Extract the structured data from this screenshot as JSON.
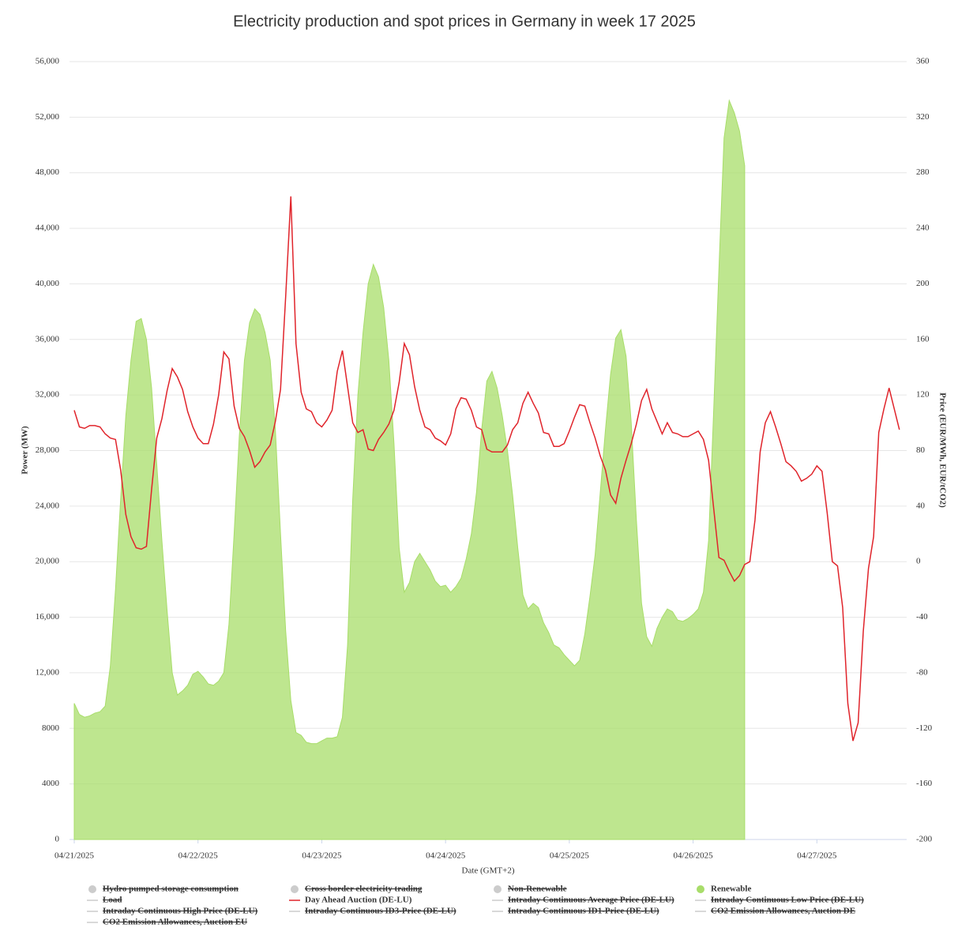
{
  "chart_data": {
    "type": "area_line",
    "title": "Electricity production and spot prices in Germany in week 17 2025",
    "x_label": "Date (GMT+2)",
    "y_label": "Power (MW)",
    "y2_label": "Price (EUR/MWh, EUR/tCO2)",
    "grid": true,
    "categories": [
      "04/21/2025",
      null,
      null,
      null,
      null,
      null,
      null,
      null,
      null,
      null,
      null,
      null,
      null,
      null,
      null,
      null,
      null,
      null,
      null,
      null,
      null,
      null,
      null,
      null,
      "04/22/2025",
      null,
      null,
      null,
      null,
      null,
      null,
      null,
      null,
      null,
      null,
      null,
      null,
      null,
      null,
      null,
      null,
      null,
      null,
      null,
      null,
      null,
      null,
      null,
      "04/23/2025",
      null,
      null,
      null,
      null,
      null,
      null,
      null,
      null,
      null,
      null,
      null,
      null,
      null,
      null,
      null,
      null,
      null,
      null,
      null,
      null,
      null,
      null,
      null,
      "04/24/2025",
      null,
      null,
      null,
      null,
      null,
      null,
      null,
      null,
      null,
      null,
      null,
      null,
      null,
      null,
      null,
      null,
      null,
      null,
      null,
      null,
      null,
      null,
      null,
      "04/25/2025",
      null,
      null,
      null,
      null,
      null,
      null,
      null,
      null,
      null,
      null,
      null,
      null,
      null,
      null,
      null,
      null,
      null,
      null,
      null,
      null,
      null,
      null,
      null,
      "04/26/2025",
      null,
      null,
      null,
      null,
      null,
      null,
      null,
      null,
      null,
      null,
      null,
      null,
      null,
      null,
      null,
      null,
      null,
      null,
      null,
      null,
      null,
      null,
      null,
      "04/27/2025",
      null,
      null,
      null,
      null,
      null,
      null,
      null,
      null,
      null,
      null,
      null,
      null,
      null,
      null,
      null,
      null
    ],
    "ylim": [
      0,
      56000
    ],
    "yticks": [
      0,
      4000,
      8000,
      {
        "value": 12000,
        "label": "12,000"
      },
      {
        "value": 16000,
        "label": "16,000"
      },
      {
        "value": 20000,
        "label": "20,000"
      },
      {
        "value": 24000,
        "label": "24,000"
      },
      {
        "value": 28000,
        "label": "28,000"
      },
      {
        "value": 32000,
        "label": "32,000"
      },
      {
        "value": 36000,
        "label": "36,000"
      },
      {
        "value": 40000,
        "label": "40,000"
      },
      {
        "value": 44000,
        "label": "44,000"
      },
      {
        "value": 48000,
        "label": "48,000"
      },
      {
        "value": 52000,
        "label": "52,000"
      },
      {
        "value": 56000,
        "label": "56,000"
      }
    ],
    "y2lim": [
      -200,
      360
    ],
    "y2ticks": [
      -200,
      -160,
      -120,
      -80,
      -40,
      0,
      40,
      80,
      120,
      160,
      200,
      240,
      280,
      320,
      360
    ],
    "series": [
      {
        "name": "Hydro pumped storage consumption",
        "symbol": "dot",
        "visible": false,
        "color": "#cccccc"
      },
      {
        "name": "Cross border electricity trading",
        "symbol": "dot",
        "visible": false,
        "color": "#cccccc"
      },
      {
        "name": "Non-Renewable",
        "symbol": "dot",
        "visible": false,
        "color": "#cccccc"
      },
      {
        "name": "Renewable",
        "symbol": "dot",
        "visible": true,
        "kind": "area",
        "color": "#a8dd6a",
        "values": [
          9800,
          9000,
          8800,
          8900,
          9100,
          9200,
          9600,
          12500,
          18000,
          24500,
          30500,
          34500,
          37300,
          37500,
          36000,
          32500,
          27000,
          21500,
          16500,
          12000,
          10400,
          10700,
          11100,
          11900,
          12100,
          11700,
          11200,
          11100,
          11400,
          12000,
          15500,
          22000,
          29000,
          34500,
          37200,
          38200,
          37800,
          36500,
          34500,
          29500,
          22000,
          15000,
          10000,
          7700,
          7500,
          7000,
          6900,
          6900,
          7100,
          7300,
          7300,
          7400,
          8800,
          14000,
          24500,
          32000,
          36500,
          40000,
          41400,
          40500,
          38300,
          34500,
          28500,
          21000,
          17800,
          18500,
          20000,
          20600,
          20000,
          19400,
          18600,
          18200,
          18300,
          17800,
          18200,
          18800,
          20200,
          22000,
          25000,
          29500,
          33000,
          33700,
          32500,
          30500,
          28000,
          24800,
          21000,
          17600,
          16600,
          17000,
          16700,
          15600,
          14900,
          14000,
          13800,
          13300,
          12900,
          12500,
          12900,
          14800,
          17500,
          20500,
          25000,
          29500,
          33500,
          36100,
          36700,
          34800,
          30000,
          23000,
          17000,
          14600,
          13900,
          15200,
          16000,
          16600,
          16400,
          15800,
          15700,
          15900,
          16200,
          16600,
          17800,
          21500,
          31000,
          41000,
          50500,
          53200,
          52300,
          51000,
          48500,
          null,
          null,
          null,
          null,
          null,
          null,
          null,
          null,
          null,
          null,
          null,
          null,
          null,
          null,
          null,
          null,
          null,
          null,
          null,
          null,
          null,
          null,
          null,
          null,
          null,
          null,
          null,
          null,
          null,
          null
        ]
      },
      {
        "name": "Load",
        "symbol": "line",
        "visible": false,
        "color": "#cccccc"
      },
      {
        "name": "Day Ahead Auction (DE-LU)",
        "symbol": "line",
        "visible": true,
        "kind": "line",
        "axis": "y2",
        "color": "#e0242b",
        "values": [
          109,
          97,
          96,
          98,
          98,
          97,
          92,
          89,
          88,
          66,
          34,
          18,
          10,
          9,
          11,
          52,
          89,
          103,
          123,
          139,
          133,
          124,
          108,
          97,
          89,
          85,
          85,
          99,
          120,
          151,
          146,
          112,
          96,
          90,
          80,
          68,
          72,
          79,
          84,
          101,
          124,
          191,
          263,
          157,
          122,
          110,
          108,
          100,
          97,
          102,
          109,
          137,
          152,
          126,
          100,
          93,
          95,
          81,
          80,
          88,
          93,
          99,
          109,
          129,
          157,
          149,
          126,
          109,
          97,
          95,
          89,
          87,
          84,
          92,
          110,
          118,
          117,
          109,
          97,
          95,
          81,
          79,
          79,
          79,
          84,
          95,
          100,
          114,
          122,
          114,
          107,
          93,
          92,
          83,
          83,
          85,
          94,
          104,
          113,
          112,
          100,
          89,
          76,
          66,
          48,
          42,
          60,
          73,
          85,
          99,
          116,
          124,
          110,
          101,
          92,
          100,
          93,
          92,
          90,
          90,
          92,
          94,
          88,
          73,
          38,
          3,
          1,
          -7,
          -14,
          -10,
          -2,
          0,
          30,
          79,
          100,
          108,
          97,
          85,
          72,
          69,
          65,
          58,
          60,
          63,
          69,
          65,
          35,
          0,
          -3,
          -33,
          -102,
          -129,
          -116,
          -50,
          -5,
          18,
          93,
          110,
          125,
          110,
          95
        ]
      },
      {
        "name": "Intraday Continuous Average Price (DE-LU)",
        "symbol": "line",
        "visible": false,
        "color": "#cccccc"
      },
      {
        "name": "Intraday Continuous Low Price (DE-LU)",
        "symbol": "line",
        "visible": false,
        "color": "#cccccc"
      },
      {
        "name": "Intraday Continuous High Price (DE-LU)",
        "symbol": "line",
        "visible": false,
        "color": "#cccccc"
      },
      {
        "name": "Intraday Continuous ID3-Price (DE-LU)",
        "symbol": "line",
        "visible": false,
        "color": "#cccccc"
      },
      {
        "name": "Intraday Continuous ID1-Price (DE-LU)",
        "symbol": "line",
        "visible": false,
        "color": "#cccccc"
      },
      {
        "name": "CO2 Emission Allowances, Auction DE",
        "symbol": "line",
        "visible": false,
        "color": "#cccccc"
      },
      {
        "name": "CO2 Emission Allowances, Auction EU",
        "symbol": "line",
        "visible": false,
        "color": "#cccccc"
      }
    ]
  }
}
